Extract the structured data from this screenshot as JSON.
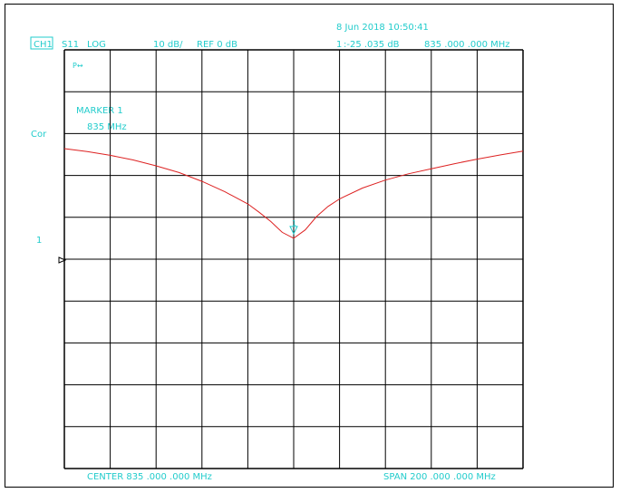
{
  "header": {
    "timestamp": "8 Jun 2018  10:50:41",
    "channel": "CH1",
    "parameter": "S11",
    "format": "LOG",
    "scale": "10 dB/",
    "reference": "REF 0 dB",
    "marker_readout_index": "1",
    "marker_readout_value": ":-25  .035  dB",
    "marker_readout_freq": "835  .000  .000  MHz"
  },
  "side": {
    "cor": "Cor",
    "ref_marker_number": "1",
    "pr_tag": "P↔"
  },
  "marker": {
    "title": "MARKER 1",
    "freq": "835 MHz",
    "symbol_label": "1"
  },
  "footer": {
    "center": "CENTER   835  .000  .000  MHz",
    "span": "SPAN   200  .000  .000  MHz"
  },
  "colors": {
    "annotation": "#22cccc",
    "trace": "#dd2222",
    "grid": "#000000"
  },
  "chart_data": {
    "type": "line",
    "title": "",
    "xlabel": "",
    "ylabel": "",
    "xlim": [
      735,
      935
    ],
    "ylim": [
      -80,
      20
    ],
    "grid": true,
    "x_unit": "MHz",
    "y_unit": "dB",
    "series": [
      {
        "values": [
          [
            735,
            -3.6
          ],
          [
            745,
            -4.3
          ],
          [
            755,
            -5.2
          ],
          [
            765,
            -6.3
          ],
          [
            775,
            -7.7
          ],
          [
            785,
            -9.3
          ],
          [
            795,
            -11.4
          ],
          [
            805,
            -13.9
          ],
          [
            815,
            -16.8
          ],
          [
            820,
            -18.8
          ],
          [
            825,
            -21.0
          ],
          [
            830,
            -23.6
          ],
          [
            835,
            -25.0
          ],
          [
            840,
            -23.0
          ],
          [
            845,
            -19.8
          ],
          [
            850,
            -17.4
          ],
          [
            855,
            -15.6
          ],
          [
            865,
            -13.0
          ],
          [
            875,
            -11.1
          ],
          [
            885,
            -9.6
          ],
          [
            895,
            -8.4
          ],
          [
            905,
            -7.2
          ],
          [
            915,
            -6.1
          ],
          [
            925,
            -5.1
          ],
          [
            935,
            -4.2
          ]
        ]
      }
    ]
  }
}
